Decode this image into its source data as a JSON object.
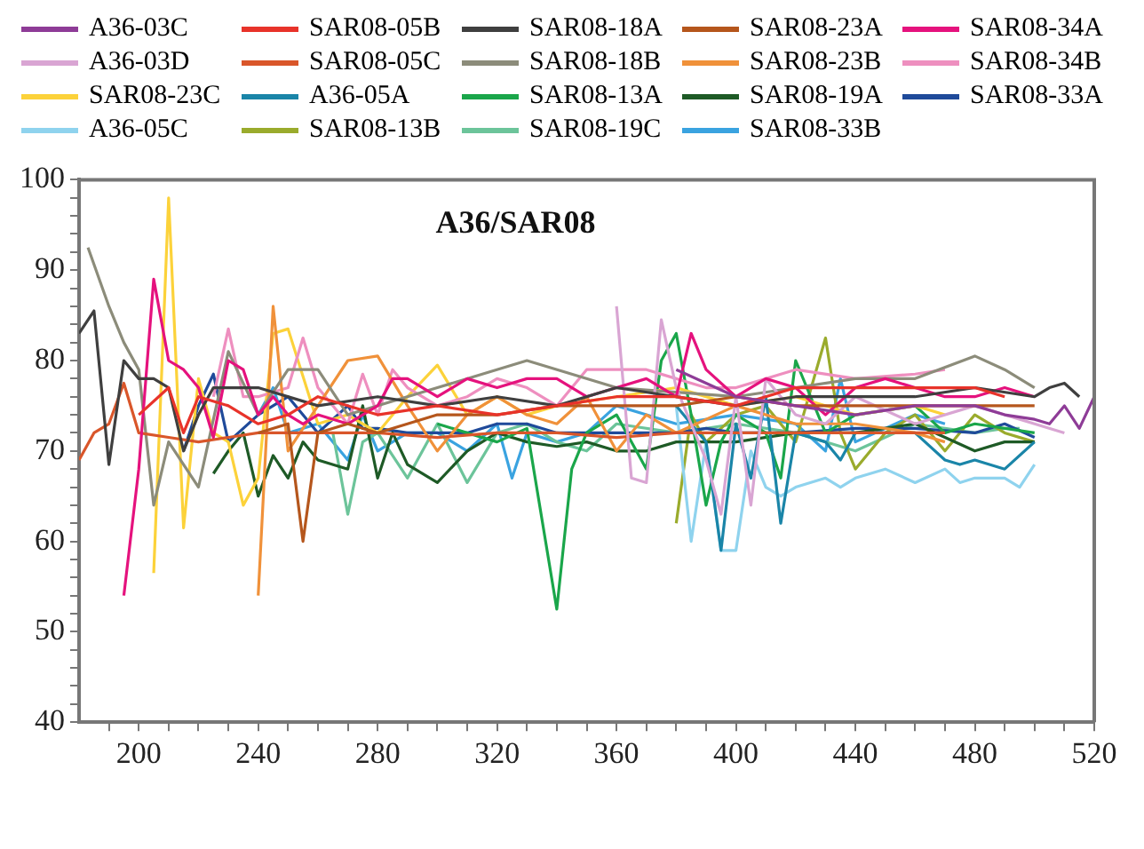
{
  "chart_data": {
    "type": "line",
    "title": "A36/SAR08",
    "legend": "top",
    "grid": false,
    "marker": "none",
    "line_style": "solid",
    "xlim": [
      180,
      520
    ],
    "ylim": [
      40,
      100
    ],
    "xticks": [
      {
        "value": 190,
        "label": null
      },
      200,
      {
        "value": 210,
        "label": null
      },
      {
        "value": 220,
        "label": null
      },
      {
        "value": 230,
        "label": null
      },
      240,
      {
        "value": 250,
        "label": null
      },
      {
        "value": 260,
        "label": null
      },
      {
        "value": 270,
        "label": null
      },
      280,
      {
        "value": 290,
        "label": null
      },
      {
        "value": 300,
        "label": null
      },
      {
        "value": 310,
        "label": null
      },
      320,
      {
        "value": 330,
        "label": null
      },
      {
        "value": 340,
        "label": null
      },
      {
        "value": 350,
        "label": null
      },
      360,
      {
        "value": 370,
        "label": null
      },
      {
        "value": 380,
        "label": null
      },
      {
        "value": 390,
        "label": null
      },
      400,
      {
        "value": 410,
        "label": null
      },
      {
        "value": 420,
        "label": null
      },
      {
        "value": 430,
        "label": null
      },
      440,
      {
        "value": 450,
        "label": null
      },
      {
        "value": 460,
        "label": null
      },
      {
        "value": 470,
        "label": null
      },
      480,
      {
        "value": 490,
        "label": null
      },
      {
        "value": 500,
        "label": null
      },
      {
        "value": 510,
        "label": null
      },
      520
    ],
    "yticks": [
      40,
      {
        "value": 42,
        "label": null
      },
      {
        "value": 44,
        "label": null
      },
      {
        "value": 46,
        "label": null
      },
      {
        "value": 48,
        "label": null
      },
      50,
      {
        "value": 52,
        "label": null
      },
      {
        "value": 54,
        "label": null
      },
      {
        "value": 56,
        "label": null
      },
      {
        "value": 58,
        "label": null
      },
      60,
      {
        "value": 62,
        "label": null
      },
      {
        "value": 64,
        "label": null
      },
      {
        "value": 66,
        "label": null
      },
      {
        "value": 68,
        "label": null
      },
      70,
      {
        "value": 72,
        "label": null
      },
      {
        "value": 74,
        "label": null
      },
      {
        "value": 76,
        "label": null
      },
      {
        "value": 78,
        "label": null
      },
      80,
      {
        "value": 82,
        "label": null
      },
      {
        "value": 84,
        "label": null
      },
      {
        "value": 86,
        "label": null
      },
      {
        "value": 88,
        "label": null
      },
      90,
      {
        "value": 92,
        "label": null
      },
      {
        "value": 94,
        "label": null
      },
      {
        "value": 96,
        "label": null
      },
      {
        "value": 98,
        "label": null
      },
      100
    ],
    "series": [
      {
        "name": "A36-03C",
        "color": "#8e3c97",
        "x": [
          380,
          400,
          420,
          440,
          460,
          480,
          490,
          500,
          505,
          510,
          515,
          520
        ],
        "values": [
          79,
          76,
          75,
          74,
          75,
          75,
          74,
          73.5,
          73,
          75,
          72.5,
          76
        ]
      },
      {
        "name": "SAR08-05B",
        "color": "#e8332a",
        "x": [
          200,
          210,
          215,
          220,
          230,
          240,
          250,
          260,
          280,
          300,
          320,
          340,
          360,
          380,
          400,
          420,
          440,
          460,
          480,
          490
        ],
        "values": [
          74,
          77,
          72,
          76,
          75,
          73,
          74,
          76,
          74,
          75,
          74,
          75,
          76,
          76,
          75,
          77,
          77,
          77,
          77,
          76
        ]
      },
      {
        "name": "SAR08-18A",
        "color": "#3f3f3f",
        "x": [
          180,
          185,
          190,
          195,
          200,
          205,
          210,
          215,
          220,
          225,
          240,
          260,
          280,
          300,
          320,
          340,
          360,
          380,
          400,
          420,
          440,
          460,
          480,
          500,
          505,
          510,
          515
        ],
        "values": [
          83,
          85.5,
          68.5,
          80,
          78,
          78,
          77,
          70,
          74,
          77,
          77,
          75,
          76,
          75,
          76,
          75,
          77,
          76,
          75,
          76,
          76,
          76,
          77,
          76,
          77,
          77.5,
          76
        ]
      },
      {
        "name": "SAR08-23A",
        "color": "#b5561c",
        "x": [
          240,
          250,
          255,
          260,
          270,
          280,
          300,
          320,
          340,
          360,
          380,
          400,
          420,
          440,
          460,
          480,
          500
        ],
        "values": [
          72,
          73,
          60,
          72,
          73,
          72,
          74,
          74,
          75,
          75,
          75,
          76,
          75,
          75,
          75,
          75,
          75
        ]
      },
      {
        "name": "SAR08-34A",
        "color": "#e5127d",
        "x": [
          195,
          200,
          205,
          210,
          215,
          220,
          225,
          230,
          235,
          240,
          245,
          250,
          255,
          260,
          270,
          280,
          285,
          290,
          300,
          310,
          320,
          330,
          340,
          350,
          360,
          370,
          380,
          385,
          390,
          400,
          410,
          420,
          430,
          440,
          450,
          460,
          470,
          480,
          490,
          500
        ],
        "values": [
          54,
          68,
          89,
          80,
          79,
          77,
          71.5,
          80,
          79,
          74,
          76,
          74,
          73,
          74,
          73,
          75,
          78,
          78,
          76,
          78,
          77,
          78,
          78,
          76,
          77,
          78,
          76,
          83,
          79,
          76,
          78,
          77,
          74,
          77,
          78,
          77,
          76,
          76,
          77,
          76
        ]
      },
      {
        "name": "A36-03D",
        "color": "#d9a5d3",
        "x": [
          360,
          365,
          370,
          375,
          380,
          390,
          395,
          400,
          405,
          410,
          420,
          430,
          440,
          460,
          480,
          500,
          510
        ],
        "values": [
          86,
          67,
          66.5,
          84.5,
          77,
          69,
          63,
          76,
          64,
          78,
          74,
          73,
          76,
          73,
          75,
          73,
          72
        ]
      },
      {
        "name": "SAR08-05C",
        "color": "#d9562a",
        "x": [
          180,
          185,
          190,
          195,
          200,
          210,
          220,
          240,
          260,
          280,
          300,
          320,
          340,
          360,
          380,
          400,
          420,
          440,
          460,
          470
        ],
        "values": [
          69,
          72,
          73,
          77.5,
          72,
          71.5,
          71,
          72,
          72,
          72,
          71.5,
          72,
          72,
          71.5,
          72,
          72,
          72,
          72,
          72,
          72
        ]
      },
      {
        "name": "SAR08-18B",
        "color": "#8c8c7a",
        "x": [
          183,
          190,
          195,
          200,
          205,
          210,
          220,
          230,
          240,
          250,
          260,
          270,
          300,
          330,
          360,
          400,
          440,
          460,
          480,
          490,
          500
        ],
        "values": [
          92.5,
          86,
          82,
          79,
          64,
          71,
          66,
          81,
          74,
          79,
          79,
          74,
          77,
          80,
          77,
          76,
          78,
          78,
          80.5,
          79,
          77
        ]
      },
      {
        "name": "SAR08-23B",
        "color": "#f0913a",
        "x": [
          240,
          245,
          250,
          260,
          270,
          280,
          290,
          300,
          310,
          320,
          330,
          340,
          350,
          360,
          370,
          380,
          400,
          420,
          440,
          460,
          470
        ],
        "values": [
          54,
          86,
          70,
          75,
          80,
          80.5,
          75,
          70,
          74,
          76,
          74,
          73,
          76,
          70,
          74,
          72,
          75,
          73,
          73,
          72,
          71
        ]
      },
      {
        "name": "SAR08-34B",
        "color": "#ee8fbf",
        "x": [
          225,
          230,
          235,
          240,
          250,
          255,
          260,
          270,
          275,
          280,
          285,
          290,
          300,
          310,
          320,
          330,
          340,
          350,
          360,
          370,
          380,
          390,
          400,
          420,
          440,
          460,
          470
        ],
        "values": [
          76,
          83.5,
          76,
          76,
          77,
          82.5,
          77,
          73,
          78.5,
          74,
          79,
          77,
          75,
          76,
          78,
          77,
          75,
          79,
          79,
          79,
          78,
          77,
          77,
          79,
          78,
          78.5,
          79
        ]
      },
      {
        "name": "SAR08-23C",
        "color": "#fcd23a",
        "x": [
          205,
          210,
          215,
          220,
          225,
          230,
          235,
          240,
          245,
          250,
          260,
          270,
          280,
          290,
          300,
          310,
          320,
          330,
          340,
          360,
          380,
          400,
          420,
          440,
          460,
          470
        ],
        "values": [
          56.5,
          98,
          61.5,
          78,
          72,
          71,
          64,
          67,
          83,
          83.5,
          73,
          74,
          72,
          76,
          79.5,
          74,
          76,
          74,
          75,
          76,
          77,
          75,
          76,
          74,
          75,
          74
        ]
      },
      {
        "name": "A36-05A",
        "color": "#1a85a8",
        "x": [
          380,
          390,
          395,
          400,
          405,
          410,
          415,
          420,
          430,
          435,
          440,
          460,
          470,
          475,
          480,
          490,
          500
        ],
        "values": [
          75,
          71,
          59,
          73,
          67,
          76,
          62,
          72,
          71,
          69,
          72,
          72,
          69,
          68.5,
          69,
          68,
          71
        ]
      },
      {
        "name": "SAR08-13A",
        "color": "#1aa64a",
        "x": [
          300,
          320,
          330,
          340,
          345,
          350,
          360,
          370,
          375,
          380,
          385,
          390,
          395,
          400,
          410,
          415,
          420,
          430,
          440,
          460,
          470,
          480,
          500
        ],
        "values": [
          73,
          71,
          72.5,
          52.5,
          68,
          72,
          74,
          68,
          80,
          83,
          74,
          64,
          71,
          74,
          72,
          67,
          80,
          72,
          74,
          75,
          72,
          73,
          72
        ]
      },
      {
        "name": "SAR08-19A",
        "color": "#1e5a26",
        "x": [
          225,
          230,
          235,
          240,
          245,
          250,
          255,
          260,
          270,
          275,
          280,
          285,
          290,
          300,
          310,
          320,
          330,
          340,
          350,
          360,
          370,
          380,
          400,
          420,
          440,
          460,
          480,
          490,
          500
        ],
        "values": [
          67.5,
          70,
          72,
          65,
          69.5,
          67,
          71,
          69,
          68,
          75,
          67,
          72,
          68.5,
          66.5,
          70,
          72,
          71,
          70.5,
          71,
          70,
          70,
          71,
          71,
          72,
          72,
          73,
          70,
          71,
          71
        ]
      },
      {
        "name": "SAR08-33A",
        "color": "#1f4a9a",
        "x": [
          215,
          220,
          225,
          230,
          240,
          250,
          260,
          270,
          275,
          280,
          290,
          300,
          310,
          320,
          330,
          340,
          350,
          360,
          370,
          380,
          390,
          400,
          420,
          440,
          460,
          480,
          490,
          500
        ],
        "values": [
          70,
          75,
          78.5,
          71,
          74,
          76,
          72,
          75,
          72.5,
          72.5,
          72,
          72,
          72,
          73,
          73,
          72,
          72,
          72,
          72,
          72,
          72.5,
          72,
          72,
          72.5,
          72.5,
          72,
          73,
          71.5
        ]
      },
      {
        "name": "A36-05C",
        "color": "#8fd3ee",
        "x": [
          380,
          385,
          390,
          395,
          400,
          405,
          410,
          415,
          420,
          430,
          435,
          440,
          450,
          460,
          470,
          475,
          480,
          490,
          495,
          500
        ],
        "values": [
          75,
          60,
          71,
          59,
          59,
          70,
          66,
          65,
          66,
          67,
          66,
          67,
          68,
          66.5,
          68,
          66.5,
          67,
          67,
          66,
          68.5
        ]
      },
      {
        "name": "SAR08-13B",
        "color": "#9aab2c",
        "x": [
          380,
          385,
          390,
          400,
          410,
          420,
          430,
          435,
          440,
          450,
          460,
          470,
          480,
          490,
          500
        ],
        "values": [
          62,
          74,
          71,
          74,
          75,
          71,
          82.5,
          72,
          68,
          72,
          74,
          70,
          74,
          72,
          71
        ]
      },
      {
        "name": "SAR08-19C",
        "color": "#6cc49a",
        "x": [
          265,
          270,
          275,
          280,
          290,
          300,
          310,
          320,
          330,
          340,
          350,
          360,
          380,
          400,
          420,
          440,
          460,
          480,
          490,
          495
        ],
        "values": [
          72,
          63,
          71,
          72,
          67,
          73,
          66.5,
          72,
          73,
          71,
          70,
          73,
          72,
          73,
          72,
          70,
          73,
          72,
          72.5,
          72.5
        ]
      },
      {
        "name": "SAR08-33B",
        "color": "#3aa3e0",
        "x": [
          240,
          245,
          250,
          260,
          270,
          275,
          280,
          290,
          300,
          310,
          320,
          325,
          330,
          340,
          350,
          360,
          370,
          380,
          400,
          420,
          430,
          435,
          440,
          460,
          470
        ],
        "values": [
          74,
          77,
          72,
          73,
          69,
          74,
          70,
          72,
          72,
          70,
          73,
          67,
          72,
          71,
          72,
          75,
          74,
          73,
          74,
          73,
          70,
          78,
          71,
          74,
          73
        ]
      }
    ]
  }
}
